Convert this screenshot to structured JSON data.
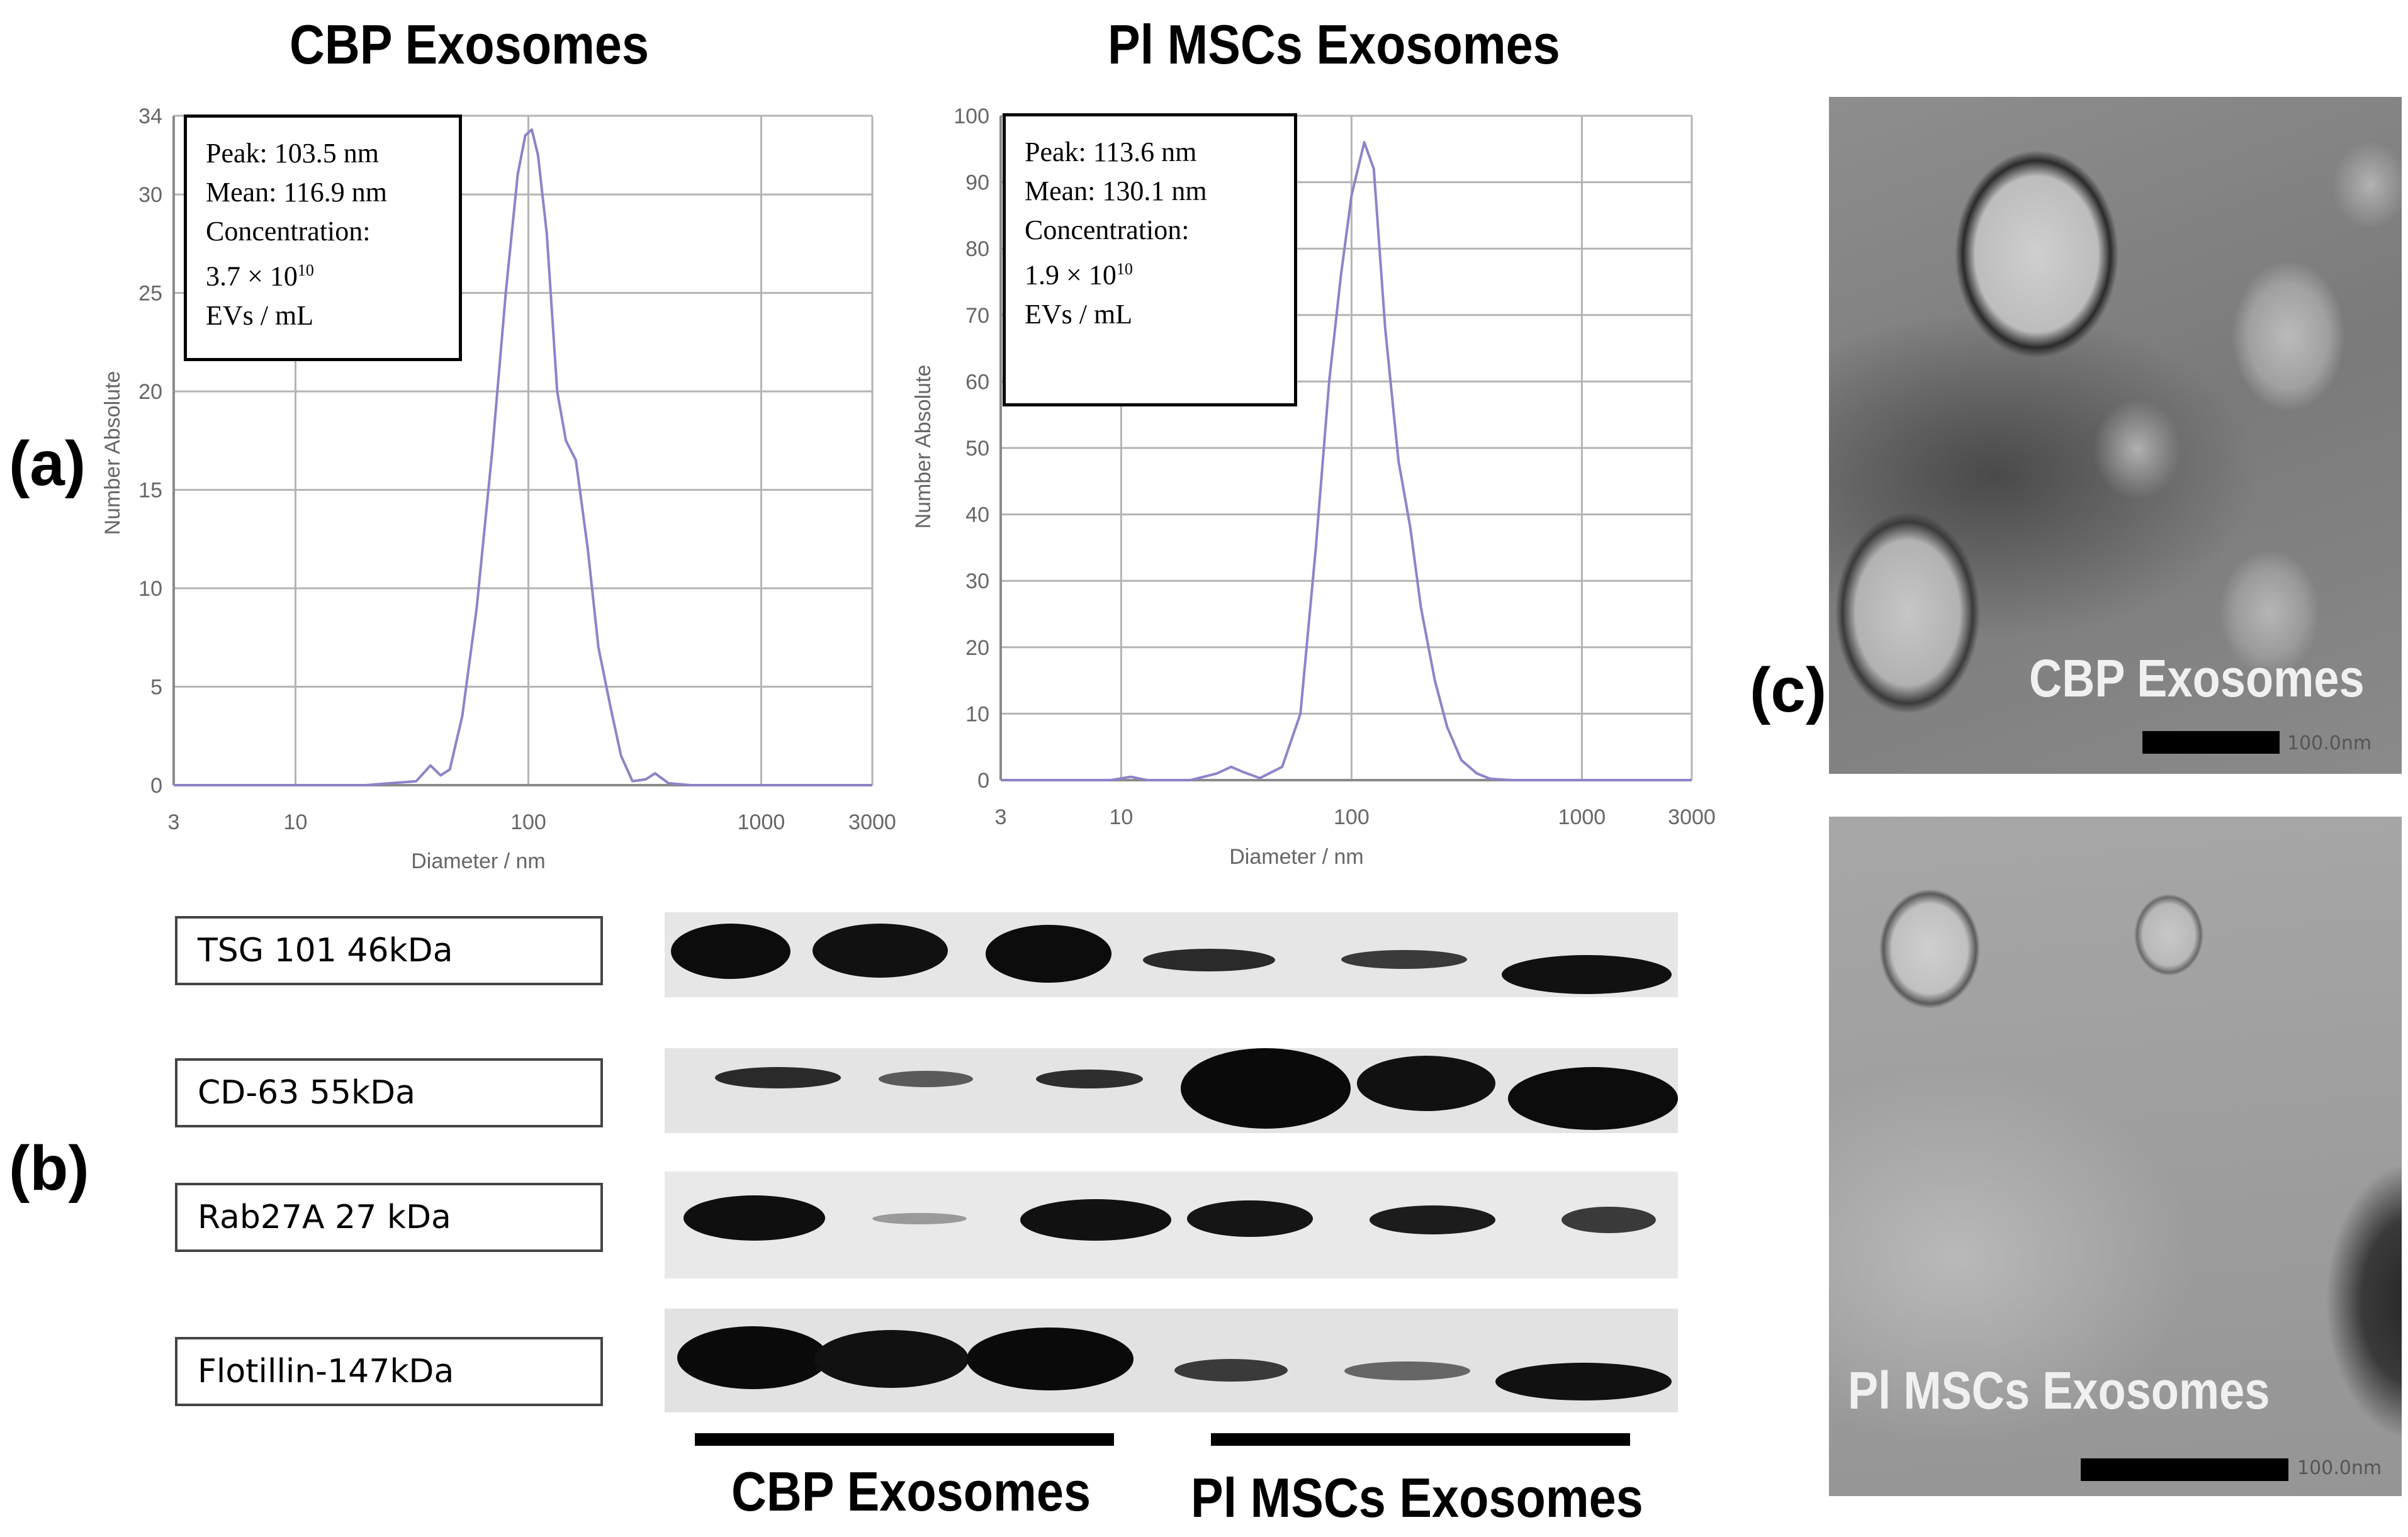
{
  "panels": {
    "a_letter": "(a)",
    "b_letter": "(b)",
    "c_letter": "(c)"
  },
  "chart_data": [
    {
      "type": "line",
      "title": "CBP Exosomes",
      "xlabel": "Diameter / nm",
      "ylabel": "Number Absolute",
      "x_scale": "log",
      "xlim": [
        3,
        3000
      ],
      "ylim": [
        0,
        34
      ],
      "x_ticks": [
        "3",
        "10",
        "100",
        "1000",
        "3000"
      ],
      "y_ticks": [
        "0",
        "5",
        "10",
        "15",
        "20",
        "25",
        "30",
        "34"
      ],
      "grid": true,
      "info": [
        "Peak: 103.5 nm",
        "Mean: 116.9 nm",
        "Concentration:",
        "3.7 × 10",
        "10",
        "EVs / mL"
      ],
      "series": [
        {
          "color": "#8c84c8",
          "x": [
            3,
            20,
            33,
            38,
            42,
            46,
            52,
            60,
            70,
            80,
            90,
            97,
            103.5,
            110,
            120,
            133,
            145,
            160,
            180,
            200,
            225,
            250,
            280,
            320,
            350,
            400,
            500,
            1000,
            3000
          ],
          "y": [
            0,
            0,
            0.2,
            1.0,
            0.5,
            0.8,
            3.5,
            9.0,
            17.0,
            25.0,
            31.0,
            33.0,
            33.3,
            32.0,
            28.0,
            20.0,
            17.5,
            16.5,
            12.0,
            7.0,
            4.0,
            1.5,
            0.2,
            0.3,
            0.6,
            0.1,
            0,
            0,
            0
          ]
        }
      ]
    },
    {
      "type": "line",
      "title": "Pl MSCs Exosomes",
      "xlabel": "Diameter / nm",
      "ylabel": "Number Absolute",
      "x_scale": "log",
      "xlim": [
        3,
        3000
      ],
      "ylim": [
        0,
        100
      ],
      "x_ticks": [
        "3",
        "10",
        "100",
        "1000",
        "3000"
      ],
      "y_ticks": [
        "0",
        "10",
        "20",
        "30",
        "40",
        "50",
        "60",
        "70",
        "80",
        "90",
        "100"
      ],
      "grid": true,
      "info": [
        "Peak: 113.6 nm",
        "Mean: 130.1 nm",
        "Concentration:",
        "1.9 × 10",
        "10",
        "EVs / mL"
      ],
      "series": [
        {
          "color": "#8c84c8",
          "x": [
            3,
            9,
            11,
            13,
            20,
            26,
            30,
            34,
            40,
            50,
            60,
            70,
            80,
            90,
            100,
            113.6,
            125,
            140,
            160,
            180,
            200,
            230,
            260,
            300,
            350,
            400,
            500,
            1000,
            3000
          ],
          "y": [
            0,
            0,
            0.5,
            0,
            0,
            1.0,
            2.0,
            1.2,
            0.3,
            2.0,
            10.0,
            35.0,
            60.0,
            76.0,
            88.0,
            96.0,
            92.0,
            68.0,
            48.0,
            38.0,
            26.0,
            15.0,
            8.0,
            3.0,
            1.0,
            0.2,
            0,
            0,
            0
          ]
        }
      ]
    }
  ],
  "western_blot": {
    "labels": [
      "TSG 101 46kDa",
      "CD-63 55kDa",
      "Rab27A 27 kDa",
      "Flotillin-147kDa"
    ],
    "group_labels": [
      "CBP Exosomes",
      "Pl MSCs Exosomes"
    ]
  },
  "tem": {
    "top_label": "CBP Exosomes",
    "bottom_label": "Pl MSCs Exosomes",
    "scale_text": "100.0nm"
  }
}
